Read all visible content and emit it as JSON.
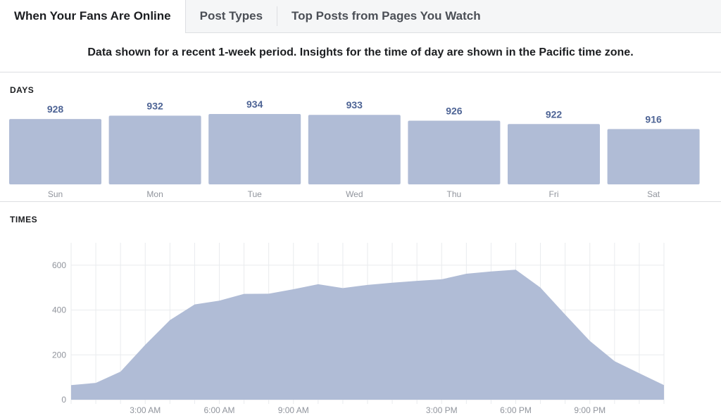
{
  "tabs": [
    {
      "label": "When Your Fans Are Online",
      "active": true
    },
    {
      "label": "Post Types",
      "active": false
    },
    {
      "label": "Top Posts from Pages You Watch",
      "active": false
    }
  ],
  "notice": "Data shown for a recent 1-week period. Insights for the time of day are shown in the Pacific time zone.",
  "days_section": {
    "title": "DAYS"
  },
  "times_section": {
    "title": "TIMES"
  },
  "colors": {
    "bar": "#b0bcd6",
    "value_label": "#4e6495",
    "axis_text": "#90949c",
    "grid": "#e9ebee"
  },
  "chart_data": [
    {
      "type": "bar",
      "title": "DAYS",
      "categories": [
        "Sun",
        "Mon",
        "Tue",
        "Wed",
        "Thu",
        "Fri",
        "Sat"
      ],
      "values": [
        928,
        932,
        934,
        933,
        926,
        922,
        916
      ],
      "data_labels": [
        "928",
        "932",
        "934",
        "933",
        "926",
        "922",
        "916"
      ],
      "ylim": [
        0,
        934
      ]
    },
    {
      "type": "area",
      "title": "TIMES",
      "x": [
        0,
        1,
        2,
        3,
        4,
        5,
        6,
        7,
        8,
        9,
        10,
        11,
        12,
        13,
        14,
        15,
        16,
        17,
        18,
        19,
        20,
        21,
        22,
        23,
        24
      ],
      "values": [
        65,
        75,
        125,
        245,
        355,
        425,
        442,
        472,
        473,
        493,
        515,
        498,
        512,
        522,
        530,
        537,
        562,
        572,
        580,
        500,
        380,
        262,
        172,
        118,
        65
      ],
      "yticks": [
        0,
        200,
        400,
        600
      ],
      "ytick_labels": [
        "0",
        "200",
        "400",
        "600"
      ],
      "xtick_positions": [
        3,
        6,
        9,
        15,
        18,
        21
      ],
      "xtick_labels": [
        "3:00 AM",
        "6:00 AM",
        "9:00 AM",
        "3:00 PM",
        "6:00 PM",
        "9:00 PM"
      ],
      "xlim": [
        0,
        24
      ],
      "ylim": [
        0,
        700
      ],
      "grid": true
    }
  ]
}
